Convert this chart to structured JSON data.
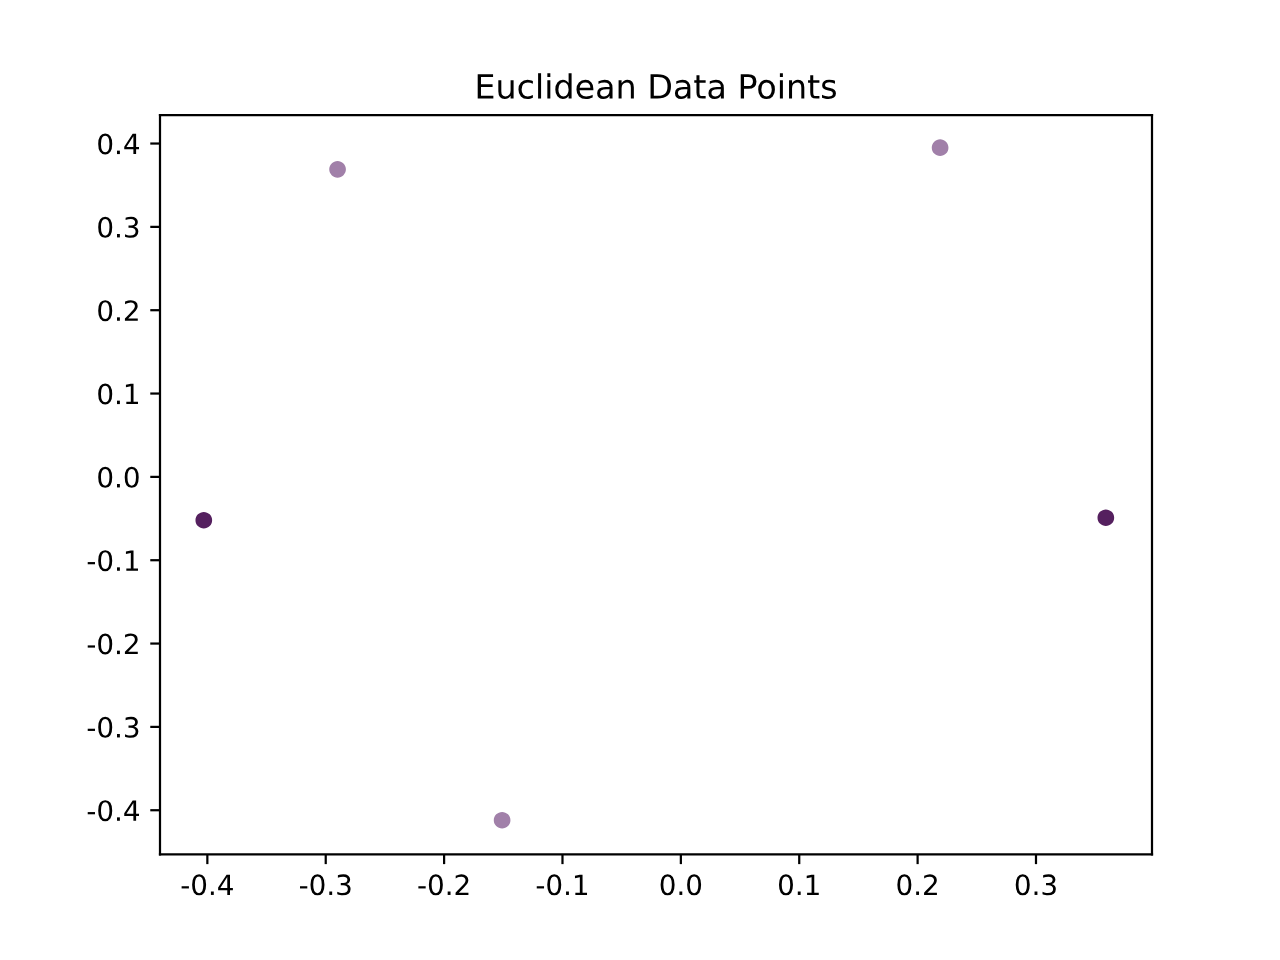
{
  "chart_data": {
    "type": "scatter",
    "title": "Euclidean Data Points",
    "x": [
      -0.29,
      0.219,
      -0.403,
      0.359,
      -0.151
    ],
    "values": [
      0.369,
      0.395,
      -0.052,
      -0.049,
      -0.412
    ],
    "colors": [
      "#a180a9",
      "#a180a9",
      "#55205f",
      "#55205f",
      "#a180a9"
    ],
    "marker": "circle",
    "xlim": [
      -0.44,
      0.398
    ],
    "ylim": [
      -0.453,
      0.434
    ],
    "xticks": [
      -0.4,
      -0.3,
      -0.2,
      -0.1,
      {
        "value": 0,
        "label": "0.0"
      },
      0.1,
      0.2,
      0.3
    ],
    "yticks": [
      -0.4,
      -0.3,
      -0.2,
      -0.1,
      {
        "value": 0,
        "label": "0.0"
      },
      0.1,
      0.2,
      0.3,
      0.4
    ],
    "grid": false
  }
}
